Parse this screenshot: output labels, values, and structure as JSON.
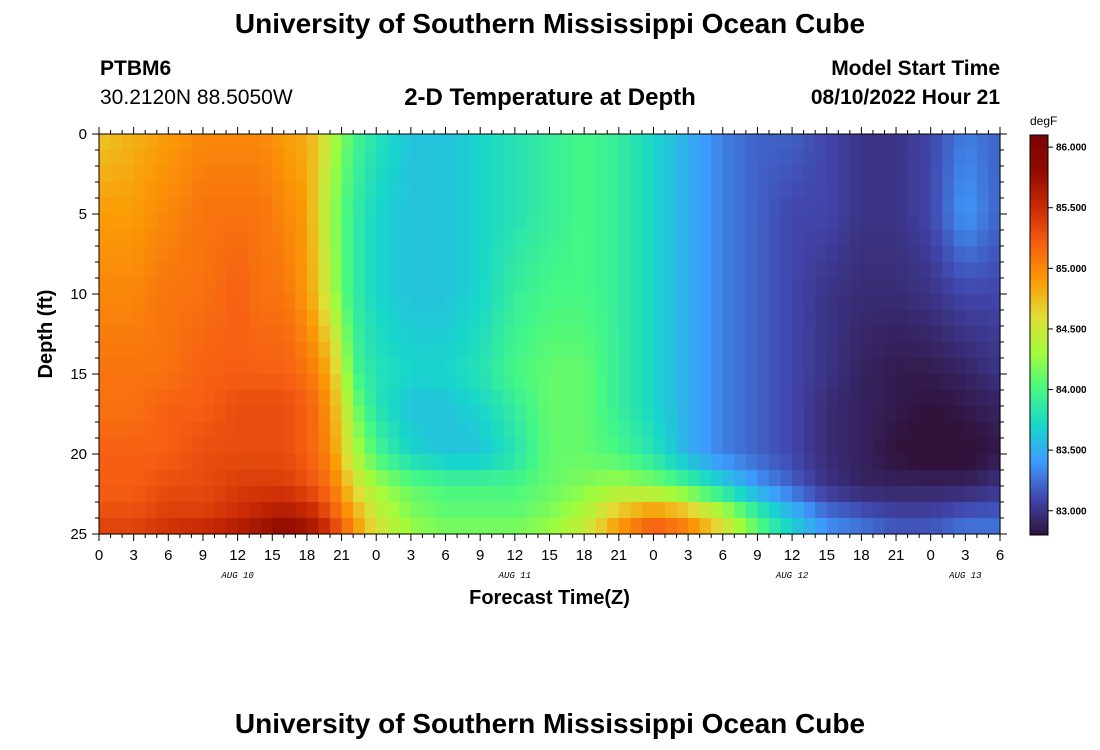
{
  "header": {
    "title": "University of Southern Mississippi Ocean Cube",
    "station_id": "PTBM6",
    "station_coords": "30.2120N  88.5050W",
    "plot_title": "2-D Temperature at Depth",
    "start_label": "Model Start Time",
    "start_value": "08/10/2022 Hour 21"
  },
  "footer": {
    "title": "University of Southern Mississippi Ocean Cube"
  },
  "chart_data": {
    "type": "heatmap",
    "title": "2-D Temperature at Depth",
    "xlabel": "Forecast Time(Z)",
    "ylabel": "Depth (ft)",
    "colorbar_label": "degF",
    "colormap": [
      "#30123b",
      "#4145ab",
      "#3e9bfe",
      "#18d6cb",
      "#46f884",
      "#a2fc3c",
      "#e1dd37",
      "#fb9b06",
      "#f65f13",
      "#cb2a04",
      "#900c00",
      "#7a0403"
    ],
    "colorbar_ticks": [
      "83.000",
      "83.500",
      "84.000",
      "84.500",
      "85.000",
      "85.500",
      "86.000"
    ],
    "value_range": [
      82.8,
      86.1
    ],
    "x_tick_labels": [
      "0",
      "3",
      "6",
      "9",
      "12",
      "15",
      "18",
      "21",
      "0",
      "3",
      "6",
      "9",
      "12",
      "15",
      "18",
      "21",
      "0",
      "3",
      "6",
      "9",
      "12",
      "15",
      "18",
      "21",
      "0",
      "3",
      "6"
    ],
    "date_labels": [
      {
        "label": "AUG 10",
        "hour_index": 12
      },
      {
        "label": "AUG 11",
        "hour_index": 36
      },
      {
        "label": "AUG 12",
        "hour_index": 60
      },
      {
        "label": "AUG 13",
        "hour_index": 75
      }
    ],
    "x_range_hours": [
      0,
      78
    ],
    "y_ticks": [
      0,
      5,
      10,
      15,
      20,
      25
    ],
    "y_range": [
      0,
      25
    ],
    "depth_levels": [
      0,
      5,
      10,
      15,
      17,
      20,
      22,
      24,
      25
    ],
    "hours": [
      0,
      3,
      6,
      9,
      12,
      14,
      16,
      18,
      19,
      20,
      21,
      22,
      24,
      27,
      30,
      33,
      36,
      39,
      42,
      45,
      48,
      51,
      54,
      57,
      60,
      63,
      66,
      69,
      72,
      75,
      78
    ],
    "temperature_degF": [
      [
        84.7,
        84.8,
        84.9,
        85.0,
        85.0,
        85.0,
        84.9,
        84.8,
        84.7,
        84.4,
        84.2,
        84.0,
        83.8,
        83.6,
        83.6,
        83.7,
        83.8,
        83.9,
        84.0,
        83.9,
        83.7,
        83.5,
        83.3,
        83.2,
        83.2,
        83.1,
        83.0,
        83.0,
        83.1,
        83.3,
        83.2
      ],
      [
        84.9,
        84.9,
        85.0,
        85.1,
        85.1,
        85.1,
        85.0,
        84.9,
        84.6,
        84.3,
        84.1,
        83.9,
        83.7,
        83.6,
        83.6,
        83.7,
        83.8,
        83.9,
        84.0,
        83.9,
        83.7,
        83.5,
        83.3,
        83.2,
        83.1,
        83.1,
        83.0,
        83.0,
        83.1,
        83.4,
        83.2
      ],
      [
        85.0,
        85.0,
        85.1,
        85.1,
        85.2,
        85.1,
        85.1,
        84.9,
        84.7,
        84.4,
        84.1,
        83.9,
        83.7,
        83.6,
        83.6,
        83.7,
        83.9,
        84.0,
        84.0,
        83.9,
        83.7,
        83.5,
        83.3,
        83.2,
        83.1,
        83.0,
        82.95,
        82.95,
        83.0,
        83.1,
        83.1
      ],
      [
        85.1,
        85.1,
        85.1,
        85.2,
        85.2,
        85.2,
        85.2,
        85.1,
        85.0,
        84.8,
        84.5,
        84.0,
        83.8,
        83.7,
        83.7,
        83.8,
        84.0,
        84.1,
        84.1,
        83.9,
        83.7,
        83.5,
        83.3,
        83.2,
        83.1,
        83.0,
        82.9,
        82.85,
        82.85,
        82.9,
        83.0
      ],
      [
        85.1,
        85.1,
        85.2,
        85.2,
        85.3,
        85.3,
        85.3,
        85.2,
        85.1,
        84.9,
        84.6,
        84.2,
        83.8,
        83.6,
        83.6,
        83.7,
        83.9,
        84.1,
        84.1,
        83.9,
        83.7,
        83.5,
        83.3,
        83.2,
        83.1,
        82.95,
        82.9,
        82.85,
        82.8,
        82.85,
        82.9
      ],
      [
        85.2,
        85.2,
        85.2,
        85.3,
        85.3,
        85.3,
        85.3,
        85.2,
        85.1,
        85.0,
        84.7,
        84.4,
        84.0,
        83.7,
        83.6,
        83.6,
        83.8,
        84.1,
        84.1,
        84.0,
        83.8,
        83.5,
        83.3,
        83.2,
        83.1,
        82.95,
        82.9,
        82.8,
        82.75,
        82.75,
        82.85
      ],
      [
        85.2,
        85.2,
        85.3,
        85.3,
        85.4,
        85.4,
        85.4,
        85.3,
        85.2,
        85.1,
        84.9,
        84.6,
        84.3,
        84.1,
        84.0,
        84.0,
        84.0,
        84.1,
        84.2,
        84.3,
        84.2,
        84.0,
        83.7,
        83.4,
        83.2,
        83.0,
        82.9,
        82.9,
        82.9,
        82.9,
        83.0
      ],
      [
        85.3,
        85.3,
        85.4,
        85.4,
        85.5,
        85.6,
        85.7,
        85.6,
        85.5,
        85.3,
        85.1,
        84.9,
        84.5,
        84.2,
        84.1,
        84.1,
        84.1,
        84.2,
        84.4,
        84.8,
        85.1,
        84.9,
        84.5,
        84.0,
        83.6,
        83.3,
        83.2,
        83.1,
        83.1,
        83.2,
        83.2
      ],
      [
        85.4,
        85.4,
        85.5,
        85.6,
        85.7,
        85.8,
        85.9,
        85.8,
        85.7,
        85.5,
        85.3,
        85.0,
        84.6,
        84.3,
        84.2,
        84.2,
        84.2,
        84.3,
        84.5,
        85.0,
        85.3,
        85.1,
        84.6,
        84.1,
        83.7,
        83.4,
        83.3,
        83.2,
        83.2,
        83.3,
        83.3
      ]
    ]
  }
}
